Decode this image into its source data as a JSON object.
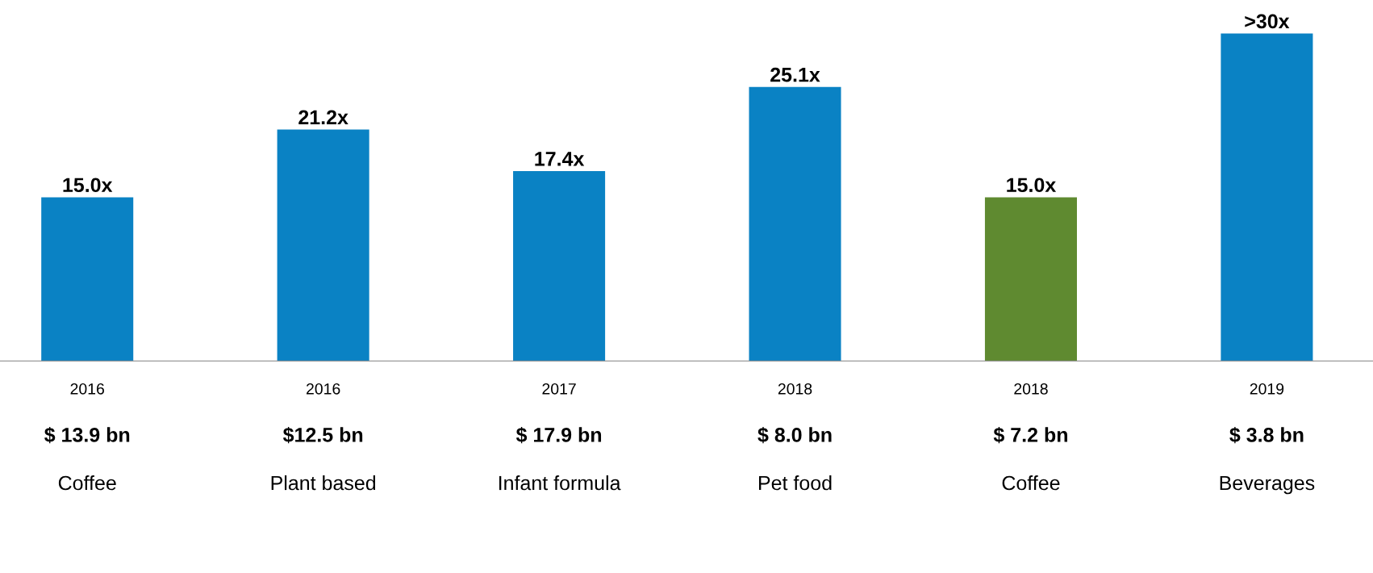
{
  "chart_data": {
    "type": "bar",
    "categories": [
      "2016\n$ 13.9 bn\nCoffee",
      "2016\n$12.5 bn\nPlant based",
      "2017\n$ 17.9 bn\nInfant formula",
      "2018\n$ 8.0 bn\nPet food",
      "2018\n$ 7.2 bn\nCoffee",
      "2019\n$ 3.8 bn\nBeverages"
    ],
    "values": [
      15.0,
      21.2,
      17.4,
      25.1,
      15.0,
      30
    ],
    "colors": [
      "#0a82c4",
      "#0a82c4",
      "#0a82c4",
      "#0a82c4",
      "#5f8a30",
      "#0a82c4"
    ],
    "value_labels": [
      "15.0x",
      "21.2x",
      "17.4x",
      "25.1x",
      "15.0x",
      ">30x"
    ]
  }
}
